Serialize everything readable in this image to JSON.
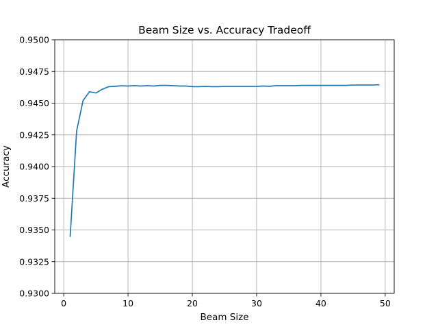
{
  "chart_data": {
    "type": "line",
    "title": "Beam Size vs. Accuracy Tradeoff",
    "xlabel": "Beam Size",
    "ylabel": "Accuracy",
    "xlim": [
      -1.4,
      51.4
    ],
    "ylim": [
      0.93,
      0.95
    ],
    "xticks": [
      0,
      10,
      20,
      30,
      40,
      50
    ],
    "xtick_labels": [
      "0",
      "10",
      "20",
      "30",
      "40",
      "50"
    ],
    "yticks": [
      0.93,
      0.9325,
      0.935,
      0.9375,
      0.94,
      0.9425,
      0.945,
      0.9475,
      0.95
    ],
    "ytick_labels": [
      "0.9300",
      "0.9325",
      "0.9350",
      "0.9375",
      "0.9400",
      "0.9425",
      "0.9450",
      "0.9475",
      "0.9500"
    ],
    "grid": true,
    "series": [
      {
        "color": "#1f77b4",
        "x": [
          1,
          2,
          3,
          4,
          5,
          6,
          7,
          8,
          9,
          10,
          11,
          12,
          13,
          14,
          15,
          16,
          17,
          18,
          19,
          20,
          21,
          22,
          23,
          24,
          25,
          26,
          27,
          28,
          29,
          30,
          31,
          32,
          33,
          34,
          35,
          36,
          37,
          38,
          39,
          40,
          41,
          42,
          43,
          44,
          45,
          46,
          47,
          48,
          49
        ],
        "values": [
          0.9345,
          0.9428,
          0.9452,
          0.9459,
          0.9458,
          0.9461,
          0.9463,
          0.94633,
          0.94637,
          0.94635,
          0.94638,
          0.94635,
          0.94638,
          0.94635,
          0.9464,
          0.9464,
          0.94638,
          0.94635,
          0.94635,
          0.9463,
          0.9463,
          0.94632,
          0.9463,
          0.9463,
          0.94632,
          0.94632,
          0.94632,
          0.94632,
          0.94632,
          0.94632,
          0.94635,
          0.94633,
          0.94638,
          0.94638,
          0.94638,
          0.94638,
          0.9464,
          0.9464,
          0.9464,
          0.9464,
          0.9464,
          0.9464,
          0.9464,
          0.9464,
          0.94643,
          0.94643,
          0.94643,
          0.94643,
          0.94645
        ]
      }
    ]
  }
}
